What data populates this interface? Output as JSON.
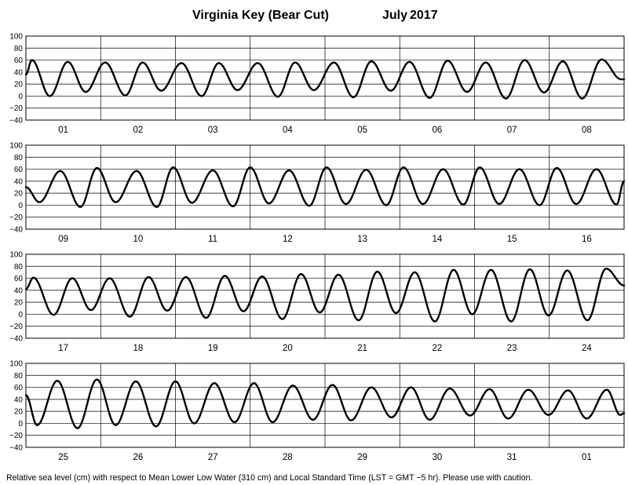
{
  "title": "Virginia Key (Bear Cut)",
  "month_label": "July",
  "year_label": "2017",
  "footer": "Relative sea level (cm) with respect to Mean Lower Low Water (310 cm) and Local Standard Time (LST = GMT −5 hr). Please use with caution.",
  "colors": {
    "line": "#000000",
    "grid": "#000000",
    "background": "#ffffff"
  },
  "chart_data": [
    {
      "type": "line",
      "panel": 1,
      "days": [
        "01",
        "02",
        "03",
        "04",
        "05",
        "06",
        "07",
        "08"
      ],
      "ylim": [
        -40,
        100
      ],
      "yticks": [
        -40,
        -20,
        0,
        20,
        40,
        60,
        80,
        100
      ],
      "grid": true,
      "series": [
        {
          "x_days": [
            0.0,
            0.08,
            0.32,
            0.56,
            0.8,
            1.06,
            1.33,
            1.56,
            1.81,
            2.08,
            2.35,
            2.58,
            2.83,
            3.1,
            3.37,
            3.6,
            3.85,
            4.12,
            4.38,
            4.62,
            4.88,
            5.13,
            5.4,
            5.64,
            5.9,
            6.15,
            6.42,
            6.67,
            6.93,
            7.18,
            7.44,
            7.7,
            7.96,
            8.0
          ],
          "y": [
            36,
            60,
            0,
            57,
            7,
            56,
            1,
            56,
            9,
            55,
            0,
            55,
            10,
            55,
            -1,
            56,
            10,
            56,
            -2,
            58,
            9,
            57,
            -3,
            59,
            7,
            56,
            -4,
            60,
            6,
            58,
            -4,
            61,
            28,
            28
          ]
        }
      ]
    },
    {
      "type": "line",
      "panel": 2,
      "days": [
        "09",
        "10",
        "11",
        "12",
        "13",
        "14",
        "15",
        "16"
      ],
      "ylim": [
        -40,
        100
      ],
      "yticks": [
        -40,
        -20,
        0,
        20,
        40,
        60,
        80,
        100
      ],
      "grid": true,
      "series": [
        {
          "x_days": [
            0.0,
            0.18,
            0.46,
            0.73,
            0.95,
            1.2,
            1.48,
            1.75,
            1.97,
            2.22,
            2.5,
            2.77,
            3.0,
            3.25,
            3.52,
            3.79,
            4.02,
            4.28,
            4.55,
            4.82,
            5.05,
            5.31,
            5.58,
            5.85,
            6.07,
            6.33,
            6.6,
            6.87,
            7.1,
            7.36,
            7.63,
            7.9,
            8.0
          ],
          "y": [
            30,
            5,
            57,
            -3,
            62,
            5,
            57,
            -3,
            63,
            4,
            58,
            -2,
            63,
            3,
            58,
            -1,
            63,
            2,
            59,
            0,
            63,
            2,
            60,
            1,
            63,
            2,
            60,
            0,
            62,
            2,
            60,
            1,
            40
          ]
        }
      ]
    },
    {
      "type": "line",
      "panel": 3,
      "days": [
        "17",
        "18",
        "19",
        "20",
        "21",
        "22",
        "23",
        "24"
      ],
      "ylim": [
        -40,
        100
      ],
      "yticks": [
        -40,
        -20,
        0,
        20,
        40,
        60,
        80,
        100
      ],
      "grid": true,
      "series": [
        {
          "x_days": [
            0.0,
            0.1,
            0.37,
            0.62,
            0.87,
            1.12,
            1.39,
            1.64,
            1.89,
            2.14,
            2.41,
            2.66,
            2.91,
            3.16,
            3.43,
            3.68,
            3.93,
            4.18,
            4.45,
            4.7,
            4.95,
            5.2,
            5.47,
            5.72,
            5.97,
            6.22,
            6.49,
            6.74,
            6.99,
            7.24,
            7.51,
            7.76,
            8.0
          ],
          "y": [
            42,
            61,
            -1,
            60,
            7,
            60,
            -4,
            62,
            6,
            62,
            -6,
            64,
            5,
            63,
            -8,
            67,
            3,
            66,
            -10,
            71,
            2,
            70,
            -12,
            74,
            0,
            74,
            -12,
            75,
            -2,
            73,
            -10,
            76,
            48
          ]
        }
      ]
    },
    {
      "type": "line",
      "panel": 4,
      "days": [
        "25",
        "26",
        "27",
        "28",
        "29",
        "30",
        "31",
        "01"
      ],
      "ylim": [
        -40,
        100
      ],
      "yticks": [
        -40,
        -20,
        0,
        20,
        40,
        60,
        80,
        100
      ],
      "grid": true,
      "series": [
        {
          "x_days": [
            0.0,
            0.15,
            0.42,
            0.69,
            0.95,
            1.2,
            1.47,
            1.74,
            2.0,
            2.25,
            2.52,
            2.79,
            3.05,
            3.3,
            3.57,
            3.84,
            4.1,
            4.35,
            4.62,
            4.89,
            5.15,
            5.4,
            5.67,
            5.94,
            6.2,
            6.45,
            6.72,
            6.99,
            7.25,
            7.5,
            7.77,
            7.95,
            8.0
          ],
          "y": [
            47,
            -3,
            71,
            -8,
            73,
            -3,
            70,
            -5,
            70,
            0,
            67,
            2,
            67,
            2,
            63,
            6,
            64,
            5,
            60,
            10,
            60,
            6,
            58,
            13,
            57,
            8,
            56,
            14,
            55,
            8,
            56,
            14,
            17
          ]
        }
      ]
    }
  ]
}
